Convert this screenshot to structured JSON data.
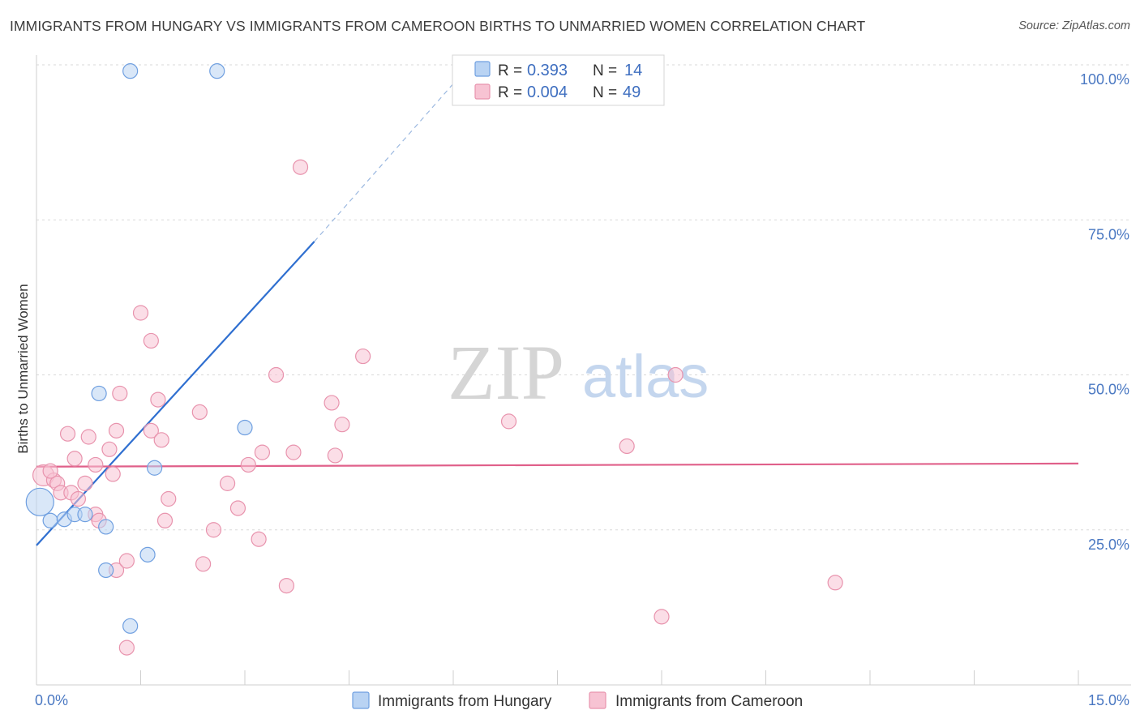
{
  "header": {
    "title": "IMMIGRANTS FROM HUNGARY VS IMMIGRANTS FROM CAMEROON BIRTHS TO UNMARRIED WOMEN CORRELATION CHART",
    "source": "Source: ZipAtlas.com"
  },
  "watermark": {
    "zip": "ZIP",
    "atlas": "atlas"
  },
  "colors": {
    "hungary_fill": "#b9d3f3",
    "hungary_stroke": "#6f9fe0",
    "hungary_line": "#2f6fd0",
    "cameroon_fill": "#f7c3d3",
    "cameroon_stroke": "#e893ad",
    "cameroon_line": "#e0608a",
    "grid": "#d9d9d9",
    "tick_text": "#4a78c2"
  },
  "chart_data": {
    "type": "scatter",
    "title": "IMMIGRANTS FROM HUNGARY VS IMMIGRANTS FROM CAMEROON BIRTHS TO UNMARRIED WOMEN CORRELATION CHART",
    "xlabel": "",
    "ylabel": "Births to Unmarried Women",
    "xlim": [
      0,
      15
    ],
    "ylim": [
      0,
      100
    ],
    "x_tick_labels": [
      "0.0%",
      "15.0%"
    ],
    "y_ticks": [
      25,
      50,
      75,
      100
    ],
    "y_tick_labels": [
      "25.0%",
      "50.0%",
      "75.0%",
      "100.0%"
    ],
    "legend": {
      "r_label": "R =",
      "n_label": "N =",
      "entries": [
        {
          "r": "0.393",
          "n": "14"
        },
        {
          "r": "0.004",
          "n": "49"
        }
      ]
    },
    "series": [
      {
        "name": "Immigrants from Hungary",
        "r": 0.393,
        "n": 14,
        "trend": {
          "x0": 0.0,
          "y0": 22.5,
          "x1": 4.0,
          "y1": 71.5,
          "dash_to_x": 6.2,
          "dash_to_y": 99.5
        },
        "points": [
          [
            0.05,
            29.5,
            17
          ],
          [
            0.2,
            26.5,
            9
          ],
          [
            0.4,
            26.7,
            9
          ],
          [
            0.55,
            27.5,
            9
          ],
          [
            0.7,
            27.5,
            9
          ],
          [
            1.0,
            25.5,
            9
          ],
          [
            1.7,
            35.0,
            9
          ],
          [
            3.0,
            41.5,
            9
          ],
          [
            0.9,
            47.0,
            9
          ],
          [
            1.35,
            9.5,
            9
          ],
          [
            1.6,
            21.0,
            9
          ],
          [
            1.0,
            18.5,
            9
          ],
          [
            1.35,
            99.0,
            9
          ],
          [
            2.6,
            99.0,
            9
          ]
        ]
      },
      {
        "name": "Immigrants from Cameroon",
        "r": 0.004,
        "n": 49,
        "trend": {
          "x0": 0.0,
          "y0": 35.2,
          "x1": 15.0,
          "y1": 35.7
        },
        "points": [
          [
            0.1,
            33.8,
            13
          ],
          [
            0.25,
            33.0,
            9
          ],
          [
            0.3,
            32.5,
            9
          ],
          [
            0.35,
            31.0,
            9
          ],
          [
            0.5,
            31.0,
            9
          ],
          [
            0.6,
            30.0,
            9
          ],
          [
            0.45,
            40.5,
            9
          ],
          [
            0.55,
            36.5,
            9
          ],
          [
            0.75,
            40.0,
            9
          ],
          [
            0.85,
            35.5,
            9
          ],
          [
            0.7,
            32.5,
            9
          ],
          [
            0.85,
            27.5,
            9
          ],
          [
            0.9,
            26.5,
            9
          ],
          [
            1.05,
            38.0,
            9
          ],
          [
            1.1,
            34.0,
            9
          ],
          [
            1.15,
            41.0,
            9
          ],
          [
            1.15,
            18.5,
            9
          ],
          [
            1.2,
            47.0,
            9
          ],
          [
            1.3,
            20.0,
            9
          ],
          [
            1.3,
            6.0,
            9
          ],
          [
            1.5,
            60.0,
            9
          ],
          [
            1.65,
            55.5,
            9
          ],
          [
            1.65,
            41.0,
            9
          ],
          [
            1.75,
            46.0,
            9
          ],
          [
            1.8,
            39.5,
            9
          ],
          [
            1.85,
            26.5,
            9
          ],
          [
            1.9,
            30.0,
            9
          ],
          [
            2.35,
            44.0,
            9
          ],
          [
            2.4,
            19.5,
            9
          ],
          [
            2.55,
            25.0,
            9
          ],
          [
            2.75,
            32.5,
            9
          ],
          [
            2.9,
            28.5,
            9
          ],
          [
            3.05,
            35.5,
            9
          ],
          [
            3.2,
            23.5,
            9
          ],
          [
            3.25,
            37.5,
            9
          ],
          [
            3.45,
            50.0,
            9
          ],
          [
            3.6,
            16.0,
            9
          ],
          [
            3.7,
            37.5,
            9
          ],
          [
            3.8,
            83.5,
            9
          ],
          [
            4.25,
            45.5,
            9
          ],
          [
            4.3,
            37.0,
            9
          ],
          [
            4.4,
            42.0,
            9
          ],
          [
            4.7,
            53.0,
            9
          ],
          [
            6.8,
            42.5,
            9
          ],
          [
            8.5,
            38.5,
            9
          ],
          [
            9.0,
            11.0,
            9
          ],
          [
            9.2,
            50.0,
            9
          ],
          [
            11.5,
            16.5,
            9
          ],
          [
            0.2,
            34.5,
            9
          ]
        ]
      }
    ]
  },
  "bottom_legend": {
    "hungary_label": "Immigrants from Hungary",
    "cameroon_label": "Immigrants from Cameroon"
  }
}
